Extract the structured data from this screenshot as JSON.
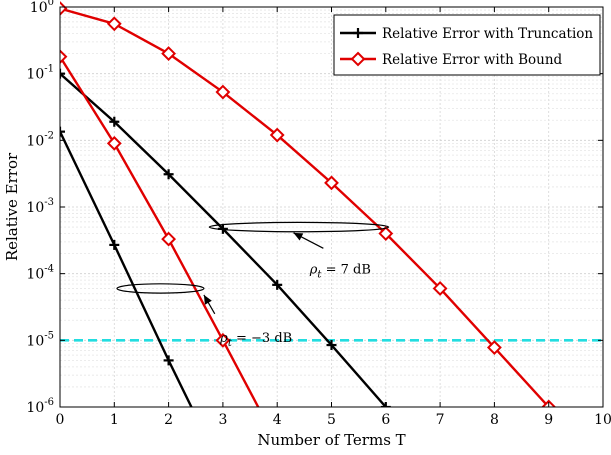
{
  "chart_data": {
    "type": "line",
    "xlabel": "Number of Terms T",
    "ylabel": "Relative Error",
    "xlim": [
      0,
      10
    ],
    "ylim": [
      1e-06,
      1
    ],
    "yscale": "log",
    "x_ticks": [
      "0",
      "1",
      "2",
      "3",
      "4",
      "5",
      "6",
      "7",
      "8",
      "9",
      "10"
    ],
    "y_ticks": [
      {
        "base": "10",
        "exp": "0"
      },
      {
        "base": "10",
        "exp": "-1"
      },
      {
        "base": "10",
        "exp": "-2"
      },
      {
        "base": "10",
        "exp": "-3"
      },
      {
        "base": "10",
        "exp": "-4"
      },
      {
        "base": "10",
        "exp": "-5"
      },
      {
        "base": "10",
        "exp": "-6"
      }
    ],
    "grid": true,
    "legend_position": "top-right",
    "legend": [
      {
        "label": "Relative Error with Truncation",
        "color": "#000000",
        "marker": "plus"
      },
      {
        "label": "Relative Error with Bound",
        "color": "#e00000",
        "marker": "diamond"
      }
    ],
    "series": [
      {
        "group": "Truncation",
        "color": "#000000",
        "marker": "plus",
        "x": [
          0,
          1,
          2,
          3,
          4,
          5,
          6
        ],
        "y": [
          0.1,
          0.019,
          0.0031,
          0.00047,
          6.8e-05,
          8.5e-06,
          1e-06
        ]
      },
      {
        "group": "Truncation",
        "color": "#000000",
        "marker": "plus",
        "x": [
          0,
          1,
          2,
          2.42
        ],
        "y": [
          0.0135,
          0.00027,
          5e-06,
          1e-06
        ],
        "marker_count": 3
      },
      {
        "group": "Bound",
        "color": "#e00000",
        "marker": "diamond",
        "x": [
          0,
          1,
          2,
          3,
          4,
          5,
          6,
          7,
          8,
          9
        ],
        "y": [
          0.95,
          0.56,
          0.2,
          0.053,
          0.012,
          0.0023,
          0.0004,
          6e-05,
          7.8e-06,
          1e-06
        ]
      },
      {
        "group": "Bound",
        "color": "#e00000",
        "marker": "diamond",
        "x": [
          0,
          1,
          2,
          3,
          3.65
        ],
        "y": [
          0.18,
          0.009,
          0.00033,
          1e-05,
          1e-06
        ],
        "marker_count": 4
      }
    ],
    "reference_line": {
      "y": 1e-05,
      "color": "#22dde0",
      "style": "dashed"
    },
    "annotations": [
      {
        "text_main": "ρ",
        "text_sub": "t",
        "text_rest": " = 7 dB",
        "text_x": 4.6,
        "text_y": 0.0001,
        "ellipse": {
          "cx": 4.4,
          "cy": 0.0005,
          "rx": 1.65,
          "ry_decades": 0.07
        },
        "arrow_from": {
          "x": 4.85,
          "y": 0.00024
        },
        "arrow_to": {
          "x": 4.3,
          "y": 0.00041
        }
      },
      {
        "text_main": "ρ",
        "text_sub": "t",
        "text_rest": " = −3 dB",
        "text_x": 2.95,
        "text_y": 9.5e-06,
        "ellipse": {
          "cx": 1.85,
          "cy": 6e-05,
          "rx": 0.8,
          "ry_decades": 0.07
        },
        "arrow_from": {
          "x": 2.85,
          "y": 2.5e-05
        },
        "arrow_to": {
          "x": 2.65,
          "y": 4.8e-05
        }
      }
    ]
  }
}
